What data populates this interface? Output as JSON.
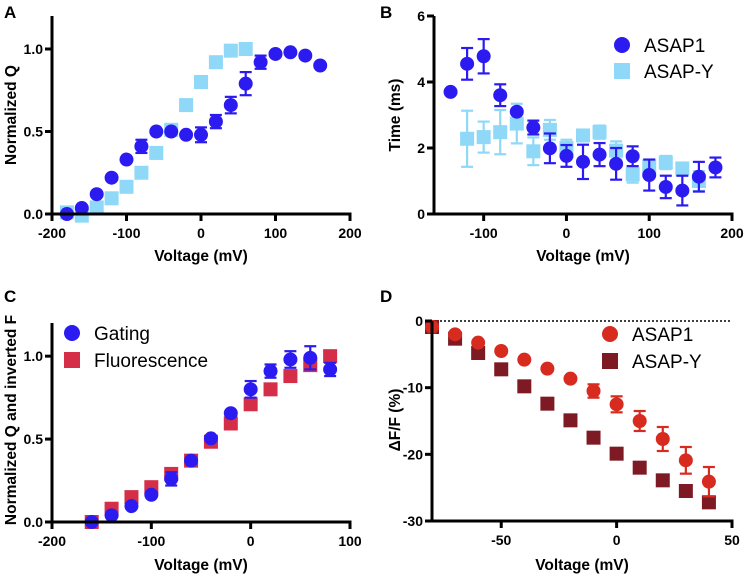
{
  "chart_data": [
    {
      "panel": "A",
      "type": "scatter",
      "title": "",
      "xlabel": "Voltage (mV)",
      "ylabel": "Normalized Q",
      "xlim": [
        -200,
        200
      ],
      "ylim": [
        0,
        1.2
      ],
      "xticks": [
        -200,
        -100,
        0,
        100,
        200
      ],
      "xtick_labels": [
        "-200",
        "-100",
        "0",
        "100",
        "200"
      ],
      "yticks": [
        0,
        0.5,
        1.0
      ],
      "ytick_labels": [
        "0.0",
        "0.5",
        "1.0"
      ],
      "grid": false,
      "legend": null,
      "series": [
        {
          "name": "ASAP-Y",
          "marker": "square",
          "color": "#8fd8f8",
          "x": [
            -180,
            -160,
            -140,
            -120,
            -100,
            -80,
            -60,
            -40,
            -20,
            0,
            20,
            40,
            60
          ],
          "y": [
            0.01,
            -0.01,
            0.04,
            0.095,
            0.165,
            0.25,
            0.37,
            0.51,
            0.66,
            0.8,
            0.92,
            0.99,
            1.0
          ],
          "err": [
            0,
            0,
            0,
            0,
            0,
            0,
            0,
            0,
            0,
            0,
            0,
            0,
            0
          ]
        },
        {
          "name": "ASAP1",
          "marker": "circle",
          "color": "#2b1bf0",
          "x": [
            -180,
            -160,
            -140,
            -120,
            -100,
            -80,
            -60,
            -40,
            -20,
            0,
            20,
            40,
            60,
            80,
            100,
            120,
            140,
            160
          ],
          "y": [
            0.0,
            0.036,
            0.12,
            0.22,
            0.33,
            0.41,
            0.5,
            0.5,
            0.48,
            0.48,
            0.56,
            0.66,
            0.79,
            0.92,
            0.97,
            0.98,
            0.96,
            0.9
          ],
          "err": [
            0,
            0,
            0,
            0,
            0,
            0.04,
            0,
            0,
            0,
            0.045,
            0.04,
            0.05,
            0.07,
            0.04,
            0,
            0,
            0,
            0
          ]
        }
      ]
    },
    {
      "panel": "B",
      "type": "scatter",
      "title": "",
      "xlabel": "Voltage (mV)",
      "ylabel": "Time (ms)",
      "xlim": [
        -160,
        200
      ],
      "ylim": [
        0,
        6
      ],
      "xticks": [
        -100,
        0,
        100,
        200
      ],
      "xtick_labels": [
        "-100",
        "0",
        "100",
        "200"
      ],
      "yticks": [
        0,
        2,
        4,
        6
      ],
      "ytick_labels": [
        "0",
        "2",
        "4",
        "6"
      ],
      "grid": false,
      "legend": {
        "position": "top-right",
        "entries": [
          "ASAP1",
          "ASAP-Y"
        ]
      },
      "series": [
        {
          "name": "ASAP-Y",
          "marker": "square",
          "color": "#8fd8f8",
          "x": [
            -120,
            -100,
            -80,
            -60,
            -40,
            -20,
            0,
            20,
            40,
            60,
            80,
            100,
            120,
            140,
            160
          ],
          "y": [
            2.28,
            2.33,
            2.48,
            2.74,
            1.9,
            2.55,
            2.0,
            2.38,
            2.48,
            1.92,
            1.2,
            1.45,
            1.56,
            1.38,
            1.0
          ],
          "err": [
            0.85,
            0.47,
            0.67,
            0.6,
            0.42,
            0.3,
            0.25,
            0.15,
            0.2,
            0.28,
            0.25,
            0.2,
            0.2,
            0.15,
            0.3
          ]
        },
        {
          "name": "ASAP1",
          "marker": "circle",
          "color": "#2b1bf0",
          "x": [
            -140,
            -120,
            -100,
            -80,
            -60,
            -40,
            -20,
            0,
            20,
            40,
            60,
            80,
            100,
            120,
            140,
            160,
            180
          ],
          "y": [
            3.7,
            4.55,
            4.78,
            3.6,
            3.1,
            2.62,
            1.99,
            1.76,
            1.58,
            1.8,
            1.52,
            1.75,
            1.18,
            0.82,
            0.71,
            1.13,
            1.41
          ],
          "err": [
            0,
            0.48,
            0.52,
            0.33,
            0,
            0.21,
            0.45,
            0.33,
            0.52,
            0.35,
            0.48,
            0.3,
            0.47,
            0.34,
            0.45,
            0.45,
            0.3
          ]
        }
      ]
    },
    {
      "panel": "C",
      "type": "scatter",
      "title": "",
      "xlabel": "Voltage (mV)",
      "ylabel": "Normalized Q and inverted F",
      "xlim": [
        -200,
        100
      ],
      "ylim": [
        0,
        1.2
      ],
      "xticks": [
        -200,
        -100,
        0,
        100
      ],
      "xtick_labels": [
        "-200",
        "-100",
        "0",
        "100"
      ],
      "yticks": [
        0,
        0.5,
        1.0
      ],
      "ytick_labels": [
        "0.0",
        "0.5",
        "1.0"
      ],
      "grid": false,
      "legend": {
        "position": "top-left",
        "entries": [
          "Gating",
          "Fluorescence"
        ]
      },
      "series": [
        {
          "name": "Fluorescence",
          "marker": "square",
          "color": "#d42e48",
          "x": [
            -160,
            -140,
            -120,
            -100,
            -80,
            -60,
            -40,
            -20,
            0,
            20,
            40,
            60,
            80
          ],
          "y": [
            0.0,
            0.08,
            0.15,
            0.21,
            0.29,
            0.37,
            0.484,
            0.594,
            0.71,
            0.8,
            0.88,
            0.946,
            1.0
          ],
          "err": [
            0,
            0,
            0,
            0,
            0,
            0,
            0,
            0,
            0,
            0,
            0,
            0,
            0
          ]
        },
        {
          "name": "Gating",
          "marker": "circle",
          "color": "#2b1bf0",
          "x": [
            -160,
            -140,
            -120,
            -100,
            -80,
            -60,
            -40,
            -20,
            0,
            20,
            40,
            60,
            80
          ],
          "y": [
            0.0,
            0.04,
            0.096,
            0.164,
            0.26,
            0.37,
            0.504,
            0.656,
            0.8,
            0.91,
            0.98,
            0.99,
            0.92
          ],
          "err": [
            0,
            0,
            0,
            0,
            0.04,
            0,
            0,
            0,
            0.05,
            0.04,
            0.05,
            0.07,
            0.04
          ]
        }
      ]
    },
    {
      "panel": "D",
      "type": "scatter",
      "title": "",
      "xlabel": "Voltage (mV)",
      "ylabel": "ΔF/F (%)",
      "xlim": [
        -80,
        50
      ],
      "ylim": [
        -30,
        0
      ],
      "xticks": [
        -50,
        0,
        50
      ],
      "xtick_labels": [
        "-50",
        "0",
        "50"
      ],
      "yticks": [
        -30,
        -20,
        -10,
        0
      ],
      "ytick_labels": [
        "-30",
        "-20",
        "-10",
        "0"
      ],
      "grid": false,
      "zero_line": true,
      "legend": {
        "position": "top-right",
        "entries": [
          "ASAP1",
          "ASAP-Y"
        ]
      },
      "series": [
        {
          "name": "ASAP-Y",
          "marker": "square",
          "color": "#7e1a24",
          "x": [
            -80,
            -70,
            -60,
            -50,
            -40,
            -30,
            -20,
            -10,
            0,
            10,
            20,
            30,
            40
          ],
          "y": [
            -0.9,
            -2.65,
            -4.8,
            -7.25,
            -9.8,
            -12.4,
            -14.9,
            -17.5,
            -19.9,
            -22.0,
            -23.9,
            -25.5,
            -27.2
          ],
          "err": [
            0,
            0,
            0,
            0,
            0,
            0,
            0,
            0.8,
            0.8,
            0.8,
            0.8,
            0.7,
            0.8
          ]
        },
        {
          "name": "ASAP1",
          "marker": "circle",
          "color": "#d82b20",
          "x": [
            -80,
            -70,
            -60,
            -50,
            -40,
            -30,
            -20,
            -10,
            0,
            10,
            20,
            30,
            40
          ],
          "y": [
            -0.9,
            -2.0,
            -3.25,
            -4.5,
            -5.8,
            -7.15,
            -8.65,
            -10.5,
            -12.5,
            -15.0,
            -17.7,
            -20.9,
            -24.1
          ],
          "err": [
            0,
            0,
            0,
            0,
            0,
            0,
            0,
            1.0,
            1.2,
            1.5,
            1.8,
            2.0,
            2.2
          ]
        }
      ]
    }
  ]
}
